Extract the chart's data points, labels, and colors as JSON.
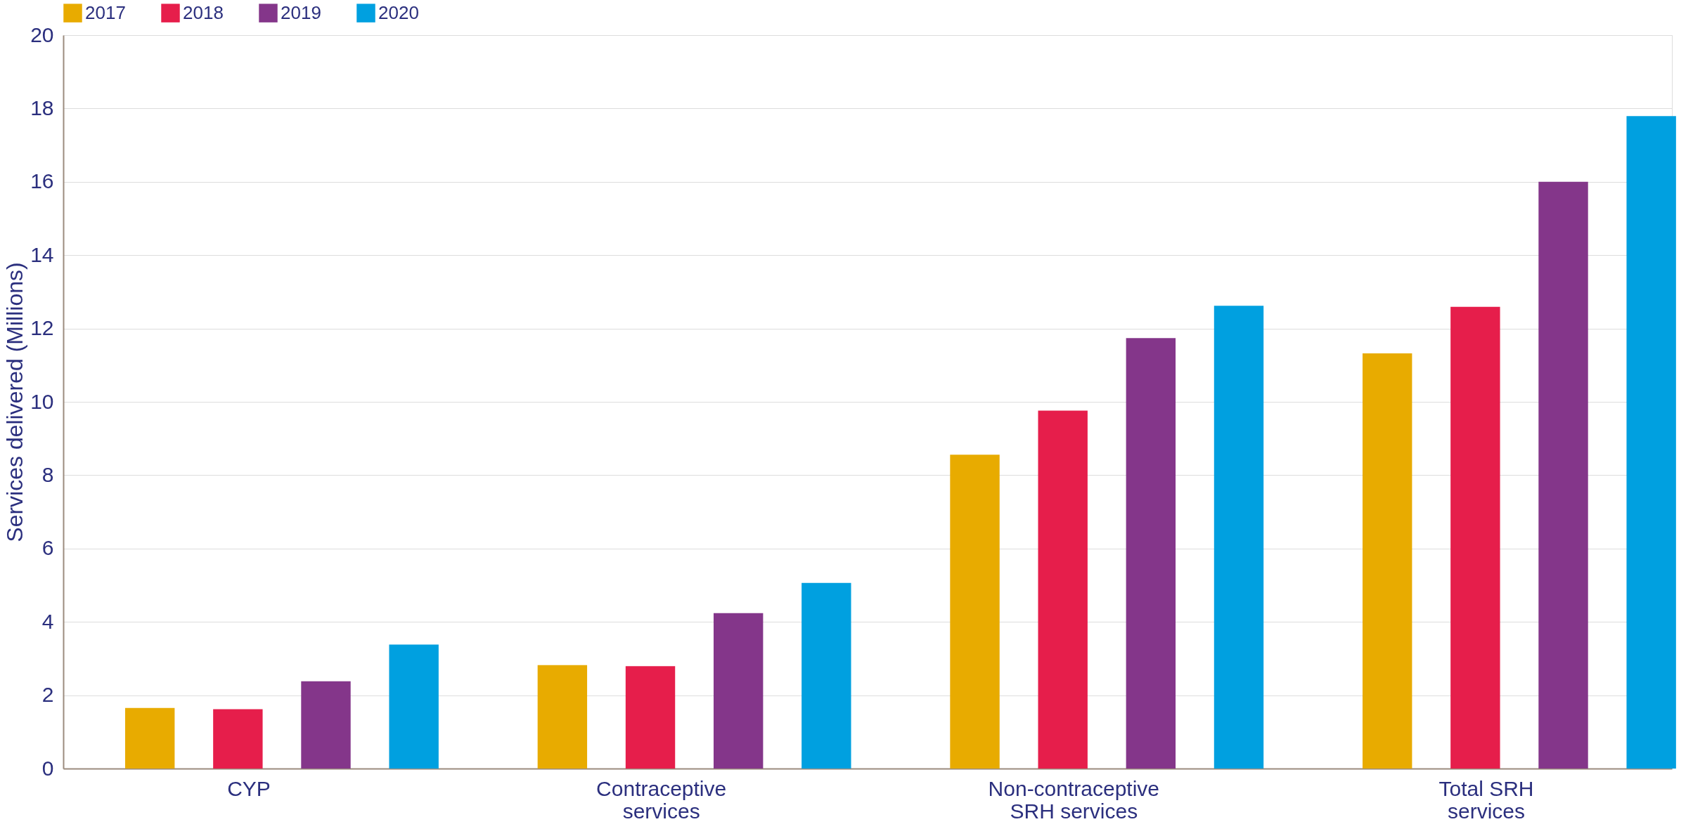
{
  "chart_data": {
    "type": "bar",
    "ylabel": "Services delivered (Millions)",
    "categories": [
      "CYP",
      "Contraceptive\nservices",
      "Non-contraceptive\nSRH services",
      "Total SRH\nservices"
    ],
    "series": [
      {
        "name": "2017",
        "color": "#e8ab00",
        "values": [
          1.65,
          2.82,
          8.56,
          11.32
        ]
      },
      {
        "name": "2018",
        "color": "#e61e4b",
        "values": [
          1.62,
          2.79,
          9.76,
          12.59
        ]
      },
      {
        "name": "2019",
        "color": "#84368a",
        "values": [
          2.38,
          4.24,
          11.74,
          16.0
        ]
      },
      {
        "name": "2020",
        "color": "#00a0e0",
        "values": [
          3.38,
          5.06,
          12.62,
          17.79
        ]
      }
    ],
    "ylim": [
      0,
      20
    ],
    "yticks": [
      0,
      2,
      4,
      6,
      8,
      10,
      12,
      14,
      16,
      18,
      20
    ],
    "grid": "y",
    "legend": "top"
  }
}
